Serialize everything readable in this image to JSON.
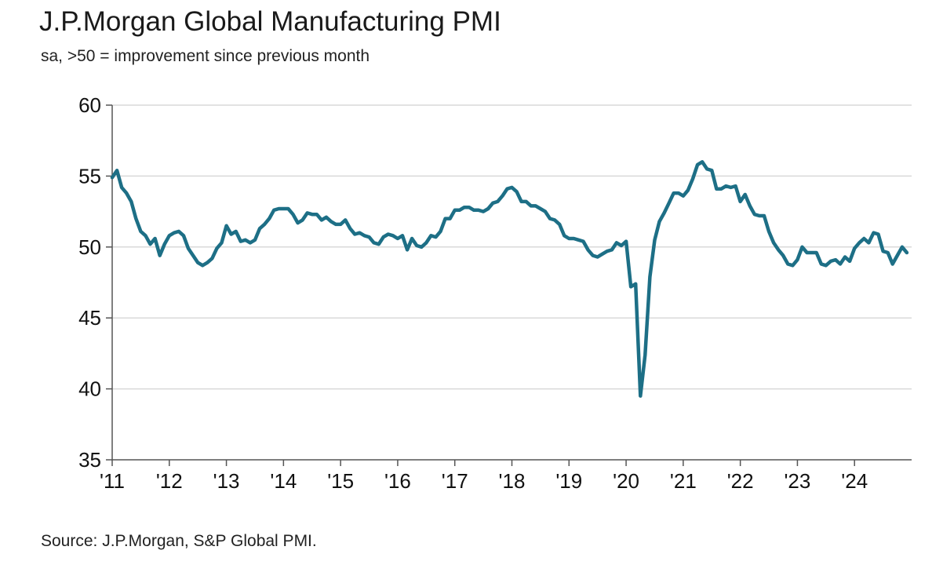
{
  "header": {
    "title": "J.P.Morgan Global Manufacturing PMI",
    "subtitle": "sa, >50 = improvement since previous month"
  },
  "footer": {
    "source": "Source: J.P.Morgan, S&P Global PMI."
  },
  "colors": {
    "line": "#1d6f86",
    "grid": "#d9d9d9",
    "axis": "#555555"
  },
  "chart_data": {
    "type": "line",
    "title": "J.P.Morgan Global Manufacturing PMI",
    "subtitle": "sa, >50 = improvement since previous month",
    "xlabel": "",
    "ylabel": "",
    "ylim": [
      35,
      60
    ],
    "xlim": [
      2011.0,
      2025.0
    ],
    "grid": true,
    "yticks": [
      35,
      40,
      45,
      50,
      55,
      60
    ],
    "ytick_labels": [
      "35",
      "40",
      "45",
      "50",
      "55",
      "60"
    ],
    "xticks": [
      2011,
      2012,
      2013,
      2014,
      2015,
      2016,
      2017,
      2018,
      2019,
      2020,
      2021,
      2022,
      2023,
      2024
    ],
    "xtick_labels": [
      "'11",
      "'12",
      "'13",
      "'14",
      "'15",
      "'16",
      "'17",
      "'18",
      "'19",
      "'20",
      "'21",
      "'22",
      "'23",
      "'24"
    ],
    "series": [
      {
        "name": "J.P.Morgan Global Manufacturing PMI",
        "start": "2011-01",
        "frequency": "monthly",
        "values": [
          54.9,
          55.4,
          54.2,
          53.8,
          53.2,
          52.0,
          51.1,
          50.8,
          50.2,
          50.6,
          49.4,
          50.2,
          50.8,
          51.0,
          51.1,
          50.8,
          49.9,
          49.4,
          48.9,
          48.7,
          48.9,
          49.2,
          49.9,
          50.3,
          51.5,
          50.9,
          51.1,
          50.4,
          50.5,
          50.3,
          50.5,
          51.3,
          51.6,
          52.0,
          52.6,
          52.7,
          52.7,
          52.7,
          52.3,
          51.7,
          51.9,
          52.4,
          52.3,
          52.3,
          51.9,
          52.1,
          51.8,
          51.6,
          51.6,
          51.9,
          51.3,
          50.9,
          51.0,
          50.8,
          50.7,
          50.3,
          50.2,
          50.7,
          50.9,
          50.8,
          50.6,
          50.8,
          49.8,
          50.6,
          50.1,
          50.0,
          50.3,
          50.8,
          50.7,
          51.1,
          52.0,
          52.0,
          52.6,
          52.6,
          52.8,
          52.8,
          52.6,
          52.6,
          52.5,
          52.7,
          53.1,
          53.2,
          53.6,
          54.1,
          54.2,
          53.9,
          53.2,
          53.2,
          52.9,
          52.9,
          52.7,
          52.5,
          52.0,
          51.9,
          51.6,
          50.8,
          50.6,
          50.6,
          50.5,
          50.4,
          49.8,
          49.4,
          49.3,
          49.5,
          49.7,
          49.8,
          50.3,
          50.1,
          50.4,
          47.2,
          47.4,
          39.5,
          42.4,
          47.9,
          50.5,
          51.8,
          52.4,
          53.1,
          53.8,
          53.8,
          53.6,
          54.0,
          54.8,
          55.8,
          56.0,
          55.5,
          55.4,
          54.1,
          54.1,
          54.3,
          54.2,
          54.3,
          53.2,
          53.7,
          52.9,
          52.3,
          52.2,
          52.2,
          51.1,
          50.3,
          49.8,
          49.4,
          48.8,
          48.7,
          49.1,
          50.0,
          49.6,
          49.6,
          49.6,
          48.8,
          48.7,
          49.0,
          49.1,
          48.8,
          49.3,
          49.0,
          49.9,
          50.3,
          50.6,
          50.3,
          51.0,
          50.9,
          49.7,
          49.6,
          48.8,
          49.4,
          50.0,
          49.6
        ]
      }
    ]
  }
}
